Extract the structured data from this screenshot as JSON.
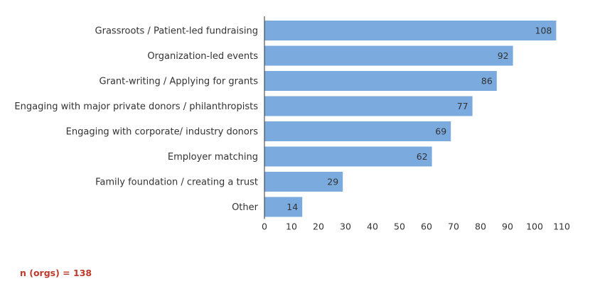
{
  "chart_data": {
    "type": "bar",
    "orientation": "horizontal",
    "categories": [
      "Grassroots / Patient-led fundraising",
      "Organization-led events",
      "Grant-writing / Applying for grants",
      "Engaging with major private donors / philanthropists",
      "Engaging with corporate/ industry donors",
      "Employer matching",
      "Family foundation / creating a trust",
      "Other"
    ],
    "values": [
      108,
      92,
      86,
      77,
      69,
      62,
      29,
      14
    ],
    "xlim": [
      0,
      110
    ],
    "xticks": [
      0,
      10,
      20,
      30,
      40,
      50,
      60,
      70,
      80,
      90,
      100,
      110
    ],
    "bar_color": "#7aaade",
    "grid": false,
    "data_labels": true,
    "legend": "none"
  },
  "footnote": "n (orgs) = 138"
}
